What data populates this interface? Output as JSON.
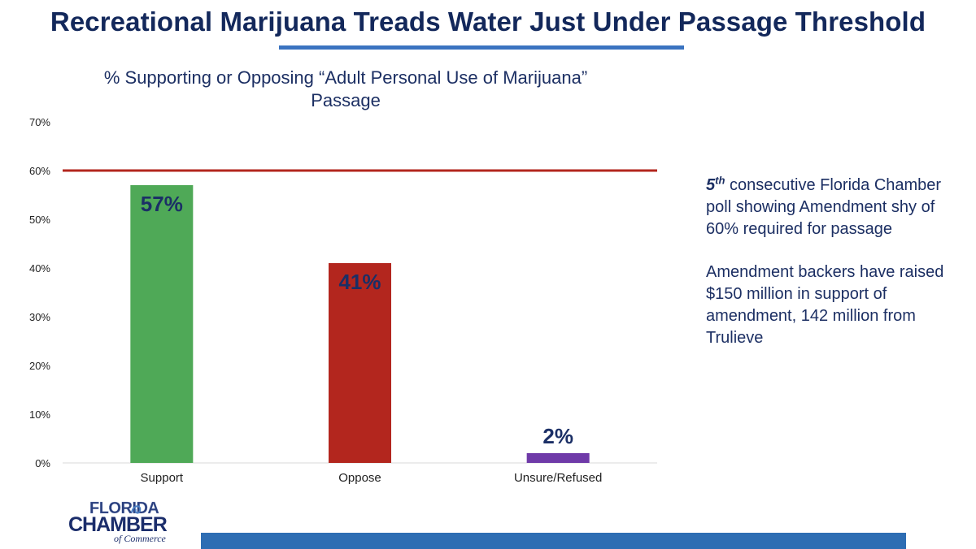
{
  "slide": {
    "title": "Recreational Marijuana Treads Water Just Under Passage Threshold"
  },
  "chart_data": {
    "type": "bar",
    "title_lines": [
      "% Supporting or Opposing “Adult Personal Use of Marijuana”",
      "Passage"
    ],
    "categories": [
      "Support",
      "Oppose",
      "Unsure/Refused"
    ],
    "values": [
      57,
      41,
      2
    ],
    "data_labels": [
      "57%",
      "41%",
      "2%"
    ],
    "colors": [
      "#4fa957",
      "#b3261e",
      "#6f3aa8"
    ],
    "ylim": [
      0,
      70
    ],
    "yticks": [
      0,
      10,
      20,
      30,
      40,
      50,
      60,
      70
    ],
    "ytick_labels": [
      "0%",
      "10%",
      "20%",
      "30%",
      "40%",
      "50%",
      "60%",
      "70%"
    ],
    "threshold": {
      "value": 60,
      "color": "#b3261e"
    },
    "grid": false,
    "legend": "none",
    "xlabel": "",
    "ylabel": ""
  },
  "side_note": {
    "ordinal": "5",
    "ordinal_suffix": "th",
    "line1_rest": " consecutive Florida Chamber poll showing Amendment shy of 60% required for passage",
    "line2": "Amendment backers have raised $150 million in support of amendment, 142 million from Trulieve"
  },
  "logo": {
    "line1": "FLORIDA",
    "line2": "CHAMBER",
    "line3": "of Commerce"
  },
  "colors": {
    "title": "#13285b",
    "accent": "#3a73c0",
    "footer": "#2e6db3"
  }
}
